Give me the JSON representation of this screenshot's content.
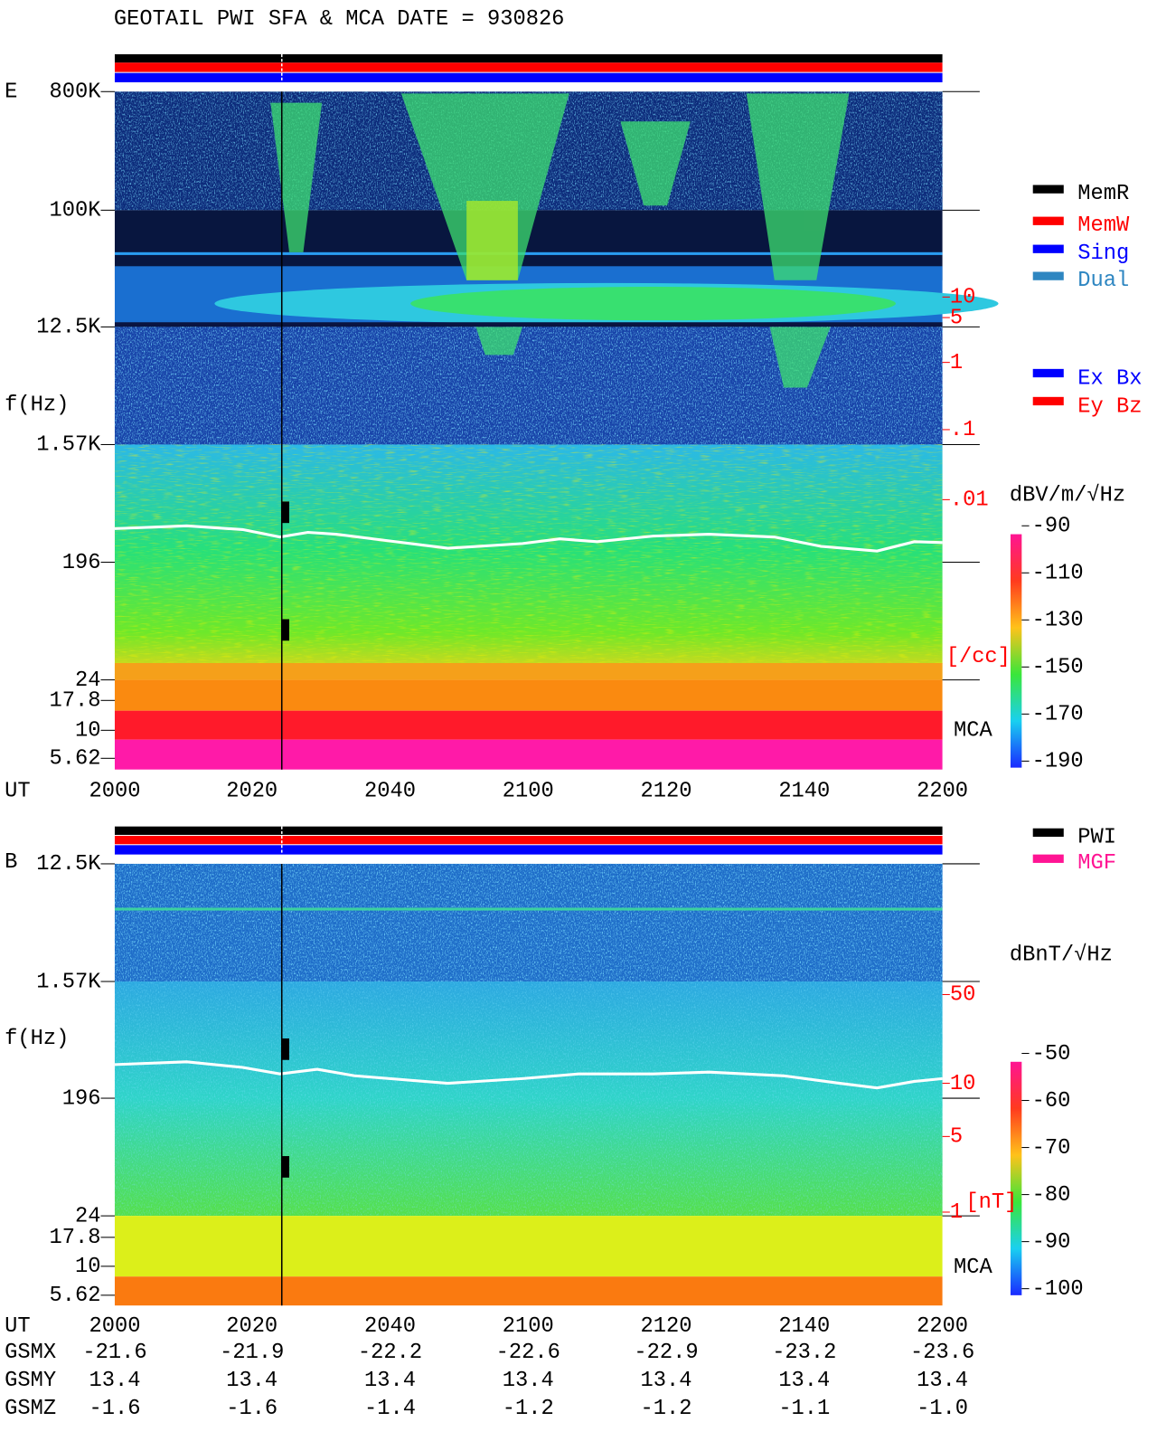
{
  "title": "GEOTAIL  PWI SFA & MCA   DATE = 930826",
  "panel_e": {
    "component": "E",
    "freq_label": "f(Hz)",
    "time_label": "UT",
    "freq_ticks": [
      "800K",
      "100K",
      "12.5K",
      "1.57K",
      "196",
      "24",
      "17.8",
      "10",
      "5.62"
    ],
    "time_ticks": [
      "2000",
      "2020",
      "2040",
      "2100",
      "2120",
      "2140",
      "2200"
    ],
    "density_ticks": [
      "10",
      "5",
      "1",
      ".1",
      ".01"
    ],
    "density_unit": "[/cc]",
    "mca_label": "MCA",
    "legend": [
      {
        "name": "MemR",
        "color": "#000000"
      },
      {
        "name": "MemW",
        "color": "#ff0000"
      },
      {
        "name": "Sing",
        "color": "#0000ff"
      },
      {
        "name": "Dual",
        "color": "#2e86c1"
      }
    ],
    "legend_components": [
      {
        "name": "Ex Bx",
        "color": "#0000ff"
      },
      {
        "name": "Ey Bz",
        "color": "#ff0000"
      }
    ],
    "colorbar": {
      "label": "dBV/m/√Hz",
      "ticks": [
        "-90",
        "-110",
        "-130",
        "-150",
        "-170",
        "-190"
      ]
    }
  },
  "panel_b": {
    "component": "B",
    "freq_label": "f(Hz)",
    "time_label": "UT",
    "freq_ticks": [
      "12.5K",
      "1.57K",
      "196",
      "24",
      "17.8",
      "10",
      "5.62"
    ],
    "time_ticks": [
      "2000",
      "2020",
      "2040",
      "2100",
      "2120",
      "2140",
      "2200"
    ],
    "density_ticks": [
      "50",
      "10",
      "5",
      "1"
    ],
    "density_unit": "[nT]",
    "mca_label": "MCA",
    "legend": [
      {
        "name": "PWI",
        "color": "#000000"
      },
      {
        "name": "MGF",
        "color": "#ff1493"
      }
    ],
    "colorbar": {
      "label": "dBnT/√Hz",
      "ticks": [
        "-50",
        "-60",
        "-70",
        "-80",
        "-90",
        "-100"
      ]
    }
  },
  "orbit": {
    "rows": [
      {
        "name": "GSMX",
        "values": [
          "-21.6",
          "-21.9",
          "-22.2",
          "-22.6",
          "-22.9",
          "-23.2",
          "-23.6"
        ]
      },
      {
        "name": "GSMY",
        "values": [
          "13.4",
          "13.4",
          "13.4",
          "13.4",
          "13.4",
          "13.4",
          "13.4"
        ]
      },
      {
        "name": "GSMZ",
        "values": [
          "-1.6",
          "-1.6",
          "-1.4",
          "-1.2",
          "-1.2",
          "-1.1",
          "-1.0"
        ]
      }
    ]
  }
}
